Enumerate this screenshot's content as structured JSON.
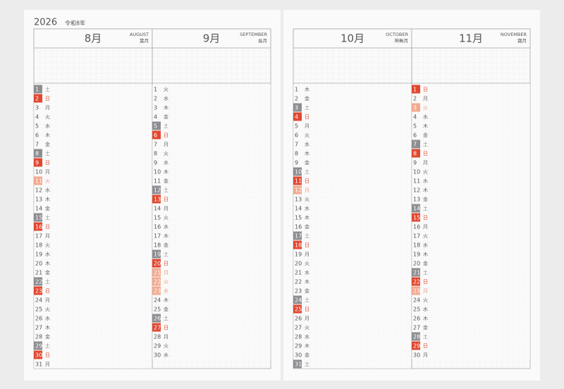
{
  "header": {
    "year": "2026",
    "era": "令和8年"
  },
  "months": [
    {
      "number": "8月",
      "english": "AUGUST",
      "old_name": "葉月",
      "days": [
        {
          "day": 1,
          "weekday": "土",
          "kind": "sat"
        },
        {
          "day": 2,
          "weekday": "日",
          "kind": "sun"
        },
        {
          "day": 3,
          "weekday": "月"
        },
        {
          "day": 4,
          "weekday": "火"
        },
        {
          "day": 5,
          "weekday": "水"
        },
        {
          "day": 6,
          "weekday": "木"
        },
        {
          "day": 7,
          "weekday": "金"
        },
        {
          "day": 8,
          "weekday": "土",
          "kind": "sat"
        },
        {
          "day": 9,
          "weekday": "日",
          "kind": "sun"
        },
        {
          "day": 10,
          "weekday": "月"
        },
        {
          "day": 11,
          "weekday": "火",
          "kind": "holiday"
        },
        {
          "day": 12,
          "weekday": "水"
        },
        {
          "day": 13,
          "weekday": "木"
        },
        {
          "day": 14,
          "weekday": "金"
        },
        {
          "day": 15,
          "weekday": "土",
          "kind": "sat"
        },
        {
          "day": 16,
          "weekday": "日",
          "kind": "sun"
        },
        {
          "day": 17,
          "weekday": "月"
        },
        {
          "day": 18,
          "weekday": "火"
        },
        {
          "day": 19,
          "weekday": "水"
        },
        {
          "day": 20,
          "weekday": "木"
        },
        {
          "day": 21,
          "weekday": "金"
        },
        {
          "day": 22,
          "weekday": "土",
          "kind": "sat"
        },
        {
          "day": 23,
          "weekday": "日",
          "kind": "sun"
        },
        {
          "day": 24,
          "weekday": "月"
        },
        {
          "day": 25,
          "weekday": "火"
        },
        {
          "day": 26,
          "weekday": "水"
        },
        {
          "day": 27,
          "weekday": "木"
        },
        {
          "day": 28,
          "weekday": "金"
        },
        {
          "day": 29,
          "weekday": "土",
          "kind": "sat"
        },
        {
          "day": 30,
          "weekday": "日",
          "kind": "sun"
        },
        {
          "day": 31,
          "weekday": "月"
        }
      ]
    },
    {
      "number": "9月",
      "english": "SEPTEMBER",
      "old_name": "長月",
      "days": [
        {
          "day": 1,
          "weekday": "火"
        },
        {
          "day": 2,
          "weekday": "水"
        },
        {
          "day": 3,
          "weekday": "木"
        },
        {
          "day": 4,
          "weekday": "金"
        },
        {
          "day": 5,
          "weekday": "土",
          "kind": "sat"
        },
        {
          "day": 6,
          "weekday": "日",
          "kind": "sun"
        },
        {
          "day": 7,
          "weekday": "月"
        },
        {
          "day": 8,
          "weekday": "火"
        },
        {
          "day": 9,
          "weekday": "水"
        },
        {
          "day": 10,
          "weekday": "木"
        },
        {
          "day": 11,
          "weekday": "金"
        },
        {
          "day": 12,
          "weekday": "土",
          "kind": "sat"
        },
        {
          "day": 13,
          "weekday": "日",
          "kind": "sun"
        },
        {
          "day": 14,
          "weekday": "月"
        },
        {
          "day": 15,
          "weekday": "火"
        },
        {
          "day": 16,
          "weekday": "水"
        },
        {
          "day": 17,
          "weekday": "木"
        },
        {
          "day": 18,
          "weekday": "金"
        },
        {
          "day": 19,
          "weekday": "土",
          "kind": "sat"
        },
        {
          "day": 20,
          "weekday": "日",
          "kind": "sun"
        },
        {
          "day": 21,
          "weekday": "月",
          "kind": "holiday"
        },
        {
          "day": 22,
          "weekday": "火",
          "kind": "holiday"
        },
        {
          "day": 23,
          "weekday": "水",
          "kind": "holiday"
        },
        {
          "day": 24,
          "weekday": "木"
        },
        {
          "day": 25,
          "weekday": "金"
        },
        {
          "day": 26,
          "weekday": "土",
          "kind": "sat"
        },
        {
          "day": 27,
          "weekday": "日",
          "kind": "sun"
        },
        {
          "day": 28,
          "weekday": "月"
        },
        {
          "day": 29,
          "weekday": "火"
        },
        {
          "day": 30,
          "weekday": "水"
        }
      ]
    },
    {
      "number": "10月",
      "english": "OCTOBER",
      "old_name": "神無月",
      "days": [
        {
          "day": 1,
          "weekday": "木"
        },
        {
          "day": 2,
          "weekday": "金"
        },
        {
          "day": 3,
          "weekday": "土",
          "kind": "sat"
        },
        {
          "day": 4,
          "weekday": "日",
          "kind": "sun"
        },
        {
          "day": 5,
          "weekday": "月"
        },
        {
          "day": 6,
          "weekday": "火"
        },
        {
          "day": 7,
          "weekday": "水"
        },
        {
          "day": 8,
          "weekday": "木"
        },
        {
          "day": 9,
          "weekday": "金"
        },
        {
          "day": 10,
          "weekday": "土",
          "kind": "sat"
        },
        {
          "day": 11,
          "weekday": "日",
          "kind": "sun"
        },
        {
          "day": 12,
          "weekday": "月",
          "kind": "holiday"
        },
        {
          "day": 13,
          "weekday": "火"
        },
        {
          "day": 14,
          "weekday": "水"
        },
        {
          "day": 15,
          "weekday": "木"
        },
        {
          "day": 16,
          "weekday": "金"
        },
        {
          "day": 17,
          "weekday": "土",
          "kind": "sat"
        },
        {
          "day": 18,
          "weekday": "日",
          "kind": "sun"
        },
        {
          "day": 19,
          "weekday": "月"
        },
        {
          "day": 20,
          "weekday": "火"
        },
        {
          "day": 21,
          "weekday": "水"
        },
        {
          "day": 22,
          "weekday": "木"
        },
        {
          "day": 23,
          "weekday": "金"
        },
        {
          "day": 24,
          "weekday": "土",
          "kind": "sat"
        },
        {
          "day": 25,
          "weekday": "日",
          "kind": "sun"
        },
        {
          "day": 26,
          "weekday": "月"
        },
        {
          "day": 27,
          "weekday": "火"
        },
        {
          "day": 28,
          "weekday": "水"
        },
        {
          "day": 29,
          "weekday": "木"
        },
        {
          "day": 30,
          "weekday": "金"
        },
        {
          "day": 31,
          "weekday": "土",
          "kind": "sat"
        }
      ]
    },
    {
      "number": "11月",
      "english": "NOVEMBER",
      "old_name": "霜月",
      "days": [
        {
          "day": 1,
          "weekday": "日",
          "kind": "sun"
        },
        {
          "day": 2,
          "weekday": "月"
        },
        {
          "day": 3,
          "weekday": "火",
          "kind": "holiday"
        },
        {
          "day": 4,
          "weekday": "水"
        },
        {
          "day": 5,
          "weekday": "木"
        },
        {
          "day": 6,
          "weekday": "金"
        },
        {
          "day": 7,
          "weekday": "土",
          "kind": "sat"
        },
        {
          "day": 8,
          "weekday": "日",
          "kind": "sun"
        },
        {
          "day": 9,
          "weekday": "月"
        },
        {
          "day": 10,
          "weekday": "火"
        },
        {
          "day": 11,
          "weekday": "水"
        },
        {
          "day": 12,
          "weekday": "木"
        },
        {
          "day": 13,
          "weekday": "金"
        },
        {
          "day": 14,
          "weekday": "土",
          "kind": "sat"
        },
        {
          "day": 15,
          "weekday": "日",
          "kind": "sun"
        },
        {
          "day": 16,
          "weekday": "月"
        },
        {
          "day": 17,
          "weekday": "火"
        },
        {
          "day": 18,
          "weekday": "水"
        },
        {
          "day": 19,
          "weekday": "木"
        },
        {
          "day": 20,
          "weekday": "金"
        },
        {
          "day": 21,
          "weekday": "土",
          "kind": "sat"
        },
        {
          "day": 22,
          "weekday": "日",
          "kind": "sun"
        },
        {
          "day": 23,
          "weekday": "月",
          "kind": "holiday"
        },
        {
          "day": 24,
          "weekday": "火"
        },
        {
          "day": 25,
          "weekday": "水"
        },
        {
          "day": 26,
          "weekday": "木"
        },
        {
          "day": 27,
          "weekday": "金"
        },
        {
          "day": 28,
          "weekday": "土",
          "kind": "sat"
        },
        {
          "day": 29,
          "weekday": "日",
          "kind": "sun"
        },
        {
          "day": 30,
          "weekday": "月"
        }
      ]
    }
  ]
}
